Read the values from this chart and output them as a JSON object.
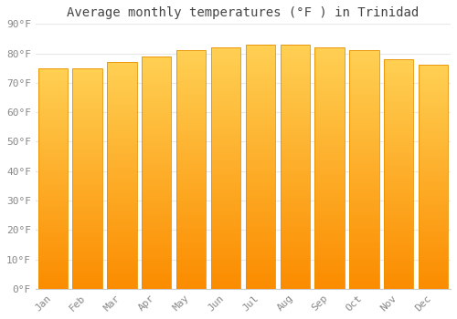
{
  "title": "Average monthly temperatures (°F ) in Trinidad",
  "months": [
    "Jan",
    "Feb",
    "Mar",
    "Apr",
    "May",
    "Jun",
    "Jul",
    "Aug",
    "Sep",
    "Oct",
    "Nov",
    "Dec"
  ],
  "values": [
    75,
    75,
    77,
    79,
    81,
    82,
    83,
    83,
    82,
    81,
    78,
    76
  ],
  "bar_color_main": "#FFA500",
  "bar_color_top": "#FFD060",
  "bar_edge_color": "#E89000",
  "background_color": "#FFFFFF",
  "grid_color": "#E8E8E8",
  "ytick_labels": [
    "0°F",
    "10°F",
    "20°F",
    "30°F",
    "40°F",
    "50°F",
    "60°F",
    "70°F",
    "80°F",
    "90°F"
  ],
  "ytick_values": [
    0,
    10,
    20,
    30,
    40,
    50,
    60,
    70,
    80,
    90
  ],
  "ylim": [
    0,
    90
  ],
  "title_fontsize": 10,
  "tick_fontsize": 8,
  "tick_color": "#888888",
  "title_color": "#444444",
  "font_family": "monospace",
  "bar_width": 0.85
}
